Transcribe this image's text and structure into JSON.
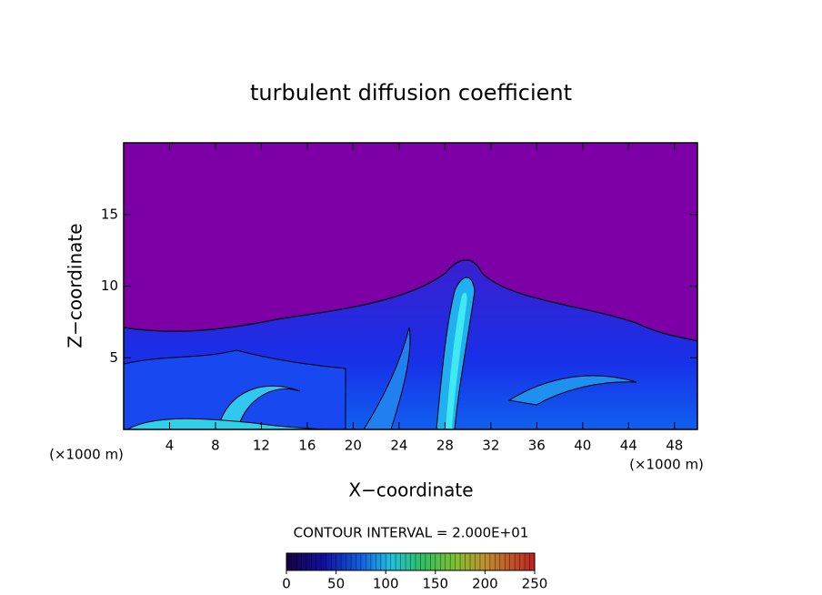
{
  "chart_data": {
    "type": "contour",
    "title": "turbulent diffusion coefficient",
    "x_label": "X−coordinate",
    "y_label": "Z−coordinate",
    "x_unit": "(×1000 m)",
    "y_unit": "(×1000 m)",
    "xlim": [
      0,
      50
    ],
    "ylim": [
      0,
      20
    ],
    "xticks": [
      4,
      8,
      12,
      16,
      20,
      24,
      28,
      32,
      36,
      40,
      44,
      48
    ],
    "yticks": [
      5,
      10,
      15
    ],
    "contour_interval": "CONTOUR INTERVAL = 2.000E+01",
    "colorbar": {
      "lim": [
        0,
        250
      ],
      "ticks": [
        0,
        50,
        100,
        150,
        200,
        250
      ]
    }
  }
}
